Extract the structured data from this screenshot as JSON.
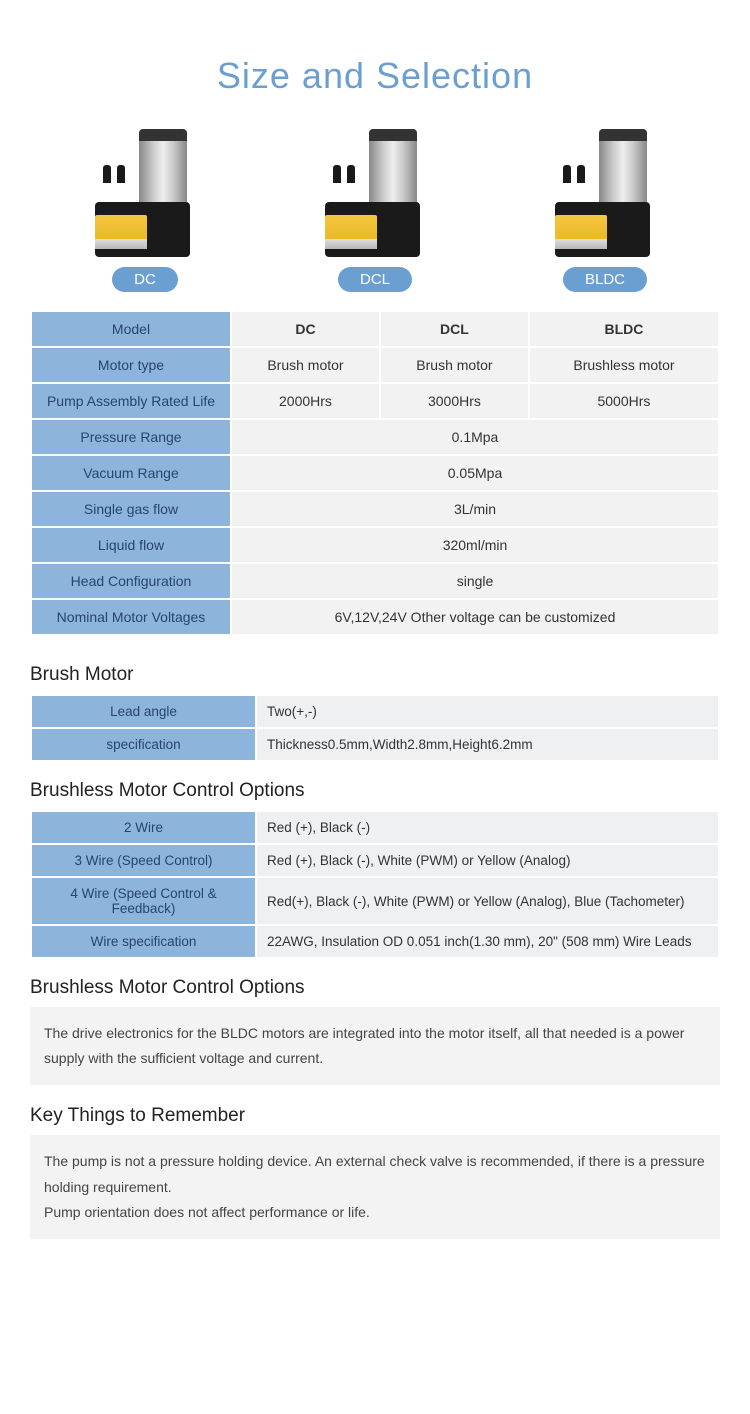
{
  "title": "Size and Selection",
  "products": [
    {
      "badge": "DC"
    },
    {
      "badge": "DCL"
    },
    {
      "badge": "BLDC"
    }
  ],
  "spec_table": {
    "header_label": "Model",
    "cols": [
      "DC",
      "DCL",
      "BLDC"
    ],
    "rows": [
      {
        "label": "Motor type",
        "cells": [
          "Brush motor",
          "Brush motor",
          "Brushless motor"
        ]
      },
      {
        "label": "Pump Assembly Rated Life",
        "cells": [
          "2000Hrs",
          "3000Hrs",
          "5000Hrs"
        ]
      },
      {
        "label": "Pressure Range",
        "merged": "0.1Mpa"
      },
      {
        "label": "Vacuum Range",
        "merged": "0.05Mpa"
      },
      {
        "label": "Single gas flow",
        "merged": "3L/min"
      },
      {
        "label": "Liquid flow",
        "merged": "320ml/min"
      },
      {
        "label": "Head Configuration",
        "merged": "single"
      },
      {
        "label": "Nominal Motor Voltages",
        "merged": "6V,12V,24V Other voltage can be customized"
      }
    ]
  },
  "brush_motor": {
    "title": "Brush Motor",
    "rows": [
      {
        "label": "Lead angle",
        "value": "Two(+,-)"
      },
      {
        "label": "specification",
        "value": "Thickness0.5mm,Width2.8mm,Height6.2mm"
      }
    ]
  },
  "bldc_options": {
    "title": "Brushless Motor Control Options",
    "rows": [
      {
        "label": "2 Wire",
        "value": "Red (+), Black (-)"
      },
      {
        "label": "3 Wire (Speed Control)",
        "value": "Red (+), Black (-), White (PWM) or Yellow (Analog)"
      },
      {
        "label": "4 Wire (Speed Control & Feedback)",
        "value": "Red(+), Black (-), White (PWM) or Yellow (Analog), Blue (Tachometer)"
      },
      {
        "label": "Wire specification",
        "value": "22AWG, Insulation OD 0.051 inch(1.30 mm), 20\" (508 mm) Wire Leads"
      }
    ]
  },
  "bldc_note": {
    "title": "Brushless Motor Control Options",
    "text": "The drive electronics for the BLDC motors are integrated into the motor itself, all that needed is a power supply with the sufficient voltage and current."
  },
  "key_things": {
    "title": "Key Things to Remember",
    "line1": "The pump is not a pressure holding device. An external check valve is recommended, if there is a pressure holding requirement.",
    "line2": "Pump orientation does not affect performance or life."
  },
  "colors": {
    "accent": "#6b9fd1",
    "header_bg": "#8db5db",
    "row_bg": "#f2f2f2"
  }
}
